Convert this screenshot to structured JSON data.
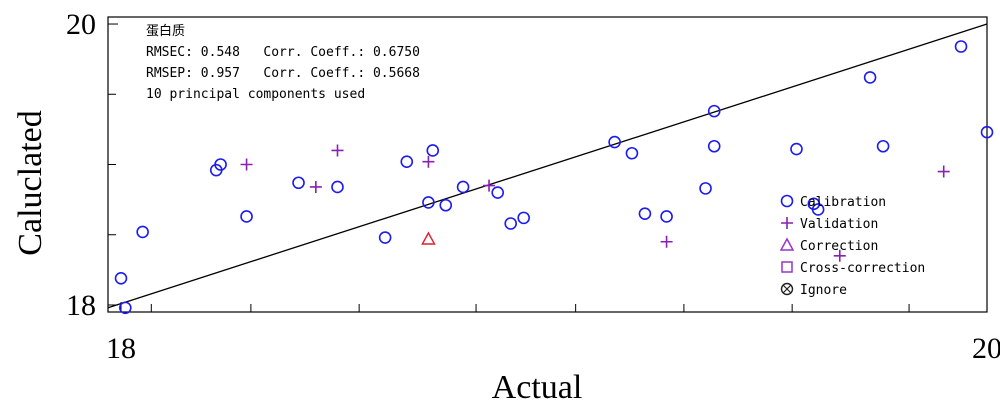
{
  "chart_data": {
    "type": "scatter",
    "xlabel": "Actual",
    "ylabel": "Caluclated",
    "xlim": [
      17.97,
      20.0
    ],
    "ylim": [
      17.95,
      20.05
    ],
    "xticks": [
      {
        "value": 18,
        "label": "18"
      },
      {
        "value": 20,
        "label": "20"
      }
    ],
    "yticks": [
      {
        "value": 18,
        "label": "18"
      },
      {
        "value": 20,
        "label": "20"
      }
    ],
    "minor_xticks": [
      18.07,
      18.3,
      18.55,
      18.82,
      19.05,
      19.3,
      19.55,
      19.82
    ],
    "minor_yticks": [
      18.5,
      19.0,
      19.5
    ],
    "info_lines": [
      "蛋白质",
      "RMSEC: 0.548   Corr. Coeff.: 0.6750",
      "RMSEP: 0.957   Corr. Coeff.: 0.5668",
      "10 principal components used"
    ],
    "reference_line": {
      "from": [
        17.97,
        17.98
      ],
      "to": [
        20.0,
        20.0
      ]
    },
    "series": [
      {
        "name": "Calibration",
        "marker": "circle",
        "color": "#1c1cf0",
        "points": [
          [
            18.0,
            18.19
          ],
          [
            18.01,
            17.98
          ],
          [
            18.05,
            18.52
          ],
          [
            18.22,
            18.96
          ],
          [
            18.23,
            19.0
          ],
          [
            18.29,
            18.63
          ],
          [
            18.41,
            18.87
          ],
          [
            18.5,
            18.84
          ],
          [
            18.61,
            18.48
          ],
          [
            18.66,
            19.02
          ],
          [
            18.71,
            18.73
          ],
          [
            18.72,
            19.1
          ],
          [
            18.75,
            18.71
          ],
          [
            18.79,
            18.84
          ],
          [
            18.87,
            18.8
          ],
          [
            18.9,
            18.58
          ],
          [
            18.93,
            18.62
          ],
          [
            19.14,
            19.16
          ],
          [
            19.18,
            19.08
          ],
          [
            19.21,
            18.65
          ],
          [
            19.26,
            18.63
          ],
          [
            19.35,
            18.83
          ],
          [
            19.37,
            19.13
          ],
          [
            19.37,
            19.38
          ],
          [
            19.56,
            19.11
          ],
          [
            19.6,
            18.72
          ],
          [
            19.61,
            18.68
          ],
          [
            19.73,
            19.62
          ],
          [
            19.76,
            19.13
          ],
          [
            19.94,
            19.84
          ],
          [
            20.0,
            19.23
          ]
        ]
      },
      {
        "name": "Validation",
        "marker": "plus",
        "color": "#8a20b0",
        "points": [
          [
            18.29,
            19.0
          ],
          [
            18.45,
            18.84
          ],
          [
            18.5,
            19.1
          ],
          [
            18.71,
            19.02
          ],
          [
            18.85,
            18.85
          ],
          [
            19.26,
            18.45
          ],
          [
            19.9,
            18.95
          ],
          [
            19.66,
            18.35
          ]
        ]
      },
      {
        "name": "Correction",
        "marker": "triangle",
        "color": "#9933cc",
        "points": [
          [
            18.71,
            18.47
          ]
        ]
      },
      {
        "name": "Cross-correction",
        "marker": "square",
        "color": "#9933cc",
        "points": []
      },
      {
        "name": "Ignore",
        "marker": "circle-x",
        "color": "#222222",
        "points": []
      }
    ],
    "legend_position": "bottom-right"
  }
}
